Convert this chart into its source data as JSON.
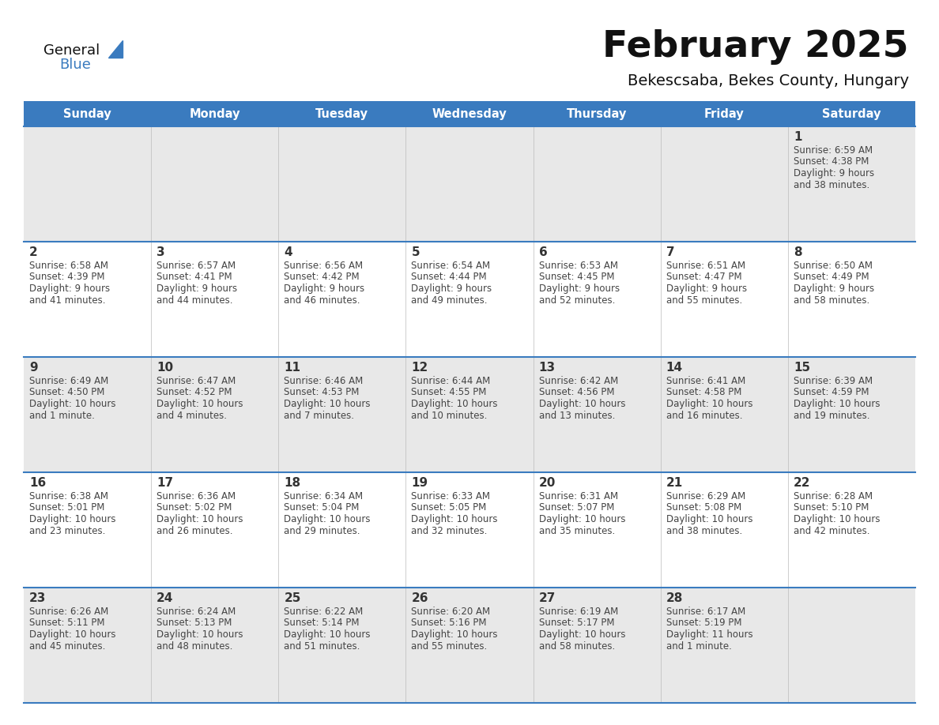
{
  "title": "February 2025",
  "subtitle": "Bekescsaba, Bekes County, Hungary",
  "header_bg": "#3a7bbf",
  "header_text": "#ffffff",
  "day_names": [
    "Sunday",
    "Monday",
    "Tuesday",
    "Wednesday",
    "Thursday",
    "Friday",
    "Saturday"
  ],
  "bg_white": "#ffffff",
  "bg_light": "#e8e8e8",
  "cell_border": "#3a7bbf",
  "day_num_color": "#333333",
  "info_color": "#444444",
  "title_color": "#111111",
  "subtitle_color": "#111111",
  "logo_general_color": "#111111",
  "logo_blue_color": "#3a7bbf",
  "logo_triangle_color": "#3a7bbf",
  "calendar": [
    [
      null,
      null,
      null,
      null,
      null,
      null,
      {
        "day": 1,
        "sunrise": "6:59 AM",
        "sunset": "4:38 PM",
        "daylight": "9 hours",
        "daylight2": "and 38 minutes."
      }
    ],
    [
      {
        "day": 2,
        "sunrise": "6:58 AM",
        "sunset": "4:39 PM",
        "daylight": "9 hours",
        "daylight2": "and 41 minutes."
      },
      {
        "day": 3,
        "sunrise": "6:57 AM",
        "sunset": "4:41 PM",
        "daylight": "9 hours",
        "daylight2": "and 44 minutes."
      },
      {
        "day": 4,
        "sunrise": "6:56 AM",
        "sunset": "4:42 PM",
        "daylight": "9 hours",
        "daylight2": "and 46 minutes."
      },
      {
        "day": 5,
        "sunrise": "6:54 AM",
        "sunset": "4:44 PM",
        "daylight": "9 hours",
        "daylight2": "and 49 minutes."
      },
      {
        "day": 6,
        "sunrise": "6:53 AM",
        "sunset": "4:45 PM",
        "daylight": "9 hours",
        "daylight2": "and 52 minutes."
      },
      {
        "day": 7,
        "sunrise": "6:51 AM",
        "sunset": "4:47 PM",
        "daylight": "9 hours",
        "daylight2": "and 55 minutes."
      },
      {
        "day": 8,
        "sunrise": "6:50 AM",
        "sunset": "4:49 PM",
        "daylight": "9 hours",
        "daylight2": "and 58 minutes."
      }
    ],
    [
      {
        "day": 9,
        "sunrise": "6:49 AM",
        "sunset": "4:50 PM",
        "daylight": "10 hours",
        "daylight2": "and 1 minute."
      },
      {
        "day": 10,
        "sunrise": "6:47 AM",
        "sunset": "4:52 PM",
        "daylight": "10 hours",
        "daylight2": "and 4 minutes."
      },
      {
        "day": 11,
        "sunrise": "6:46 AM",
        "sunset": "4:53 PM",
        "daylight": "10 hours",
        "daylight2": "and 7 minutes."
      },
      {
        "day": 12,
        "sunrise": "6:44 AM",
        "sunset": "4:55 PM",
        "daylight": "10 hours",
        "daylight2": "and 10 minutes."
      },
      {
        "day": 13,
        "sunrise": "6:42 AM",
        "sunset": "4:56 PM",
        "daylight": "10 hours",
        "daylight2": "and 13 minutes."
      },
      {
        "day": 14,
        "sunrise": "6:41 AM",
        "sunset": "4:58 PM",
        "daylight": "10 hours",
        "daylight2": "and 16 minutes."
      },
      {
        "day": 15,
        "sunrise": "6:39 AM",
        "sunset": "4:59 PM",
        "daylight": "10 hours",
        "daylight2": "and 19 minutes."
      }
    ],
    [
      {
        "day": 16,
        "sunrise": "6:38 AM",
        "sunset": "5:01 PM",
        "daylight": "10 hours",
        "daylight2": "and 23 minutes."
      },
      {
        "day": 17,
        "sunrise": "6:36 AM",
        "sunset": "5:02 PM",
        "daylight": "10 hours",
        "daylight2": "and 26 minutes."
      },
      {
        "day": 18,
        "sunrise": "6:34 AM",
        "sunset": "5:04 PM",
        "daylight": "10 hours",
        "daylight2": "and 29 minutes."
      },
      {
        "day": 19,
        "sunrise": "6:33 AM",
        "sunset": "5:05 PM",
        "daylight": "10 hours",
        "daylight2": "and 32 minutes."
      },
      {
        "day": 20,
        "sunrise": "6:31 AM",
        "sunset": "5:07 PM",
        "daylight": "10 hours",
        "daylight2": "and 35 minutes."
      },
      {
        "day": 21,
        "sunrise": "6:29 AM",
        "sunset": "5:08 PM",
        "daylight": "10 hours",
        "daylight2": "and 38 minutes."
      },
      {
        "day": 22,
        "sunrise": "6:28 AM",
        "sunset": "5:10 PM",
        "daylight": "10 hours",
        "daylight2": "and 42 minutes."
      }
    ],
    [
      {
        "day": 23,
        "sunrise": "6:26 AM",
        "sunset": "5:11 PM",
        "daylight": "10 hours",
        "daylight2": "and 45 minutes."
      },
      {
        "day": 24,
        "sunrise": "6:24 AM",
        "sunset": "5:13 PM",
        "daylight": "10 hours",
        "daylight2": "and 48 minutes."
      },
      {
        "day": 25,
        "sunrise": "6:22 AM",
        "sunset": "5:14 PM",
        "daylight": "10 hours",
        "daylight2": "and 51 minutes."
      },
      {
        "day": 26,
        "sunrise": "6:20 AM",
        "sunset": "5:16 PM",
        "daylight": "10 hours",
        "daylight2": "and 55 minutes."
      },
      {
        "day": 27,
        "sunrise": "6:19 AM",
        "sunset": "5:17 PM",
        "daylight": "10 hours",
        "daylight2": "and 58 minutes."
      },
      {
        "day": 28,
        "sunrise": "6:17 AM",
        "sunset": "5:19 PM",
        "daylight": "11 hours",
        "daylight2": "and 1 minute."
      },
      null
    ]
  ]
}
